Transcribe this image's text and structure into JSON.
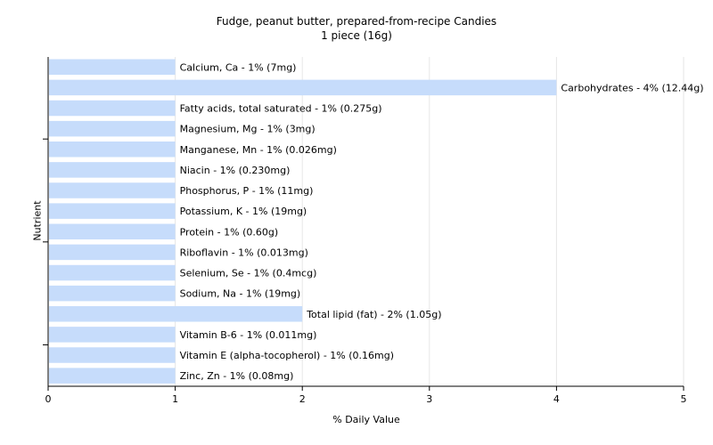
{
  "chart_data": {
    "type": "bar",
    "orientation": "horizontal",
    "title": "Fudge, peanut butter, prepared-from-recipe Candies",
    "subtitle": "1 piece (16g)",
    "xlabel": "% Daily Value",
    "ylabel": "Nutrient",
    "xlim": [
      0,
      5
    ],
    "xticks": [
      "0",
      "1",
      "2",
      "3",
      "4",
      "5"
    ],
    "grid": true,
    "categories": [
      "Calcium, Ca",
      "Carbohydrates",
      "Fatty acids, total saturated",
      "Magnesium, Mg",
      "Manganese, Mn",
      "Niacin",
      "Phosphorus, P",
      "Potassium, K",
      "Protein",
      "Riboflavin",
      "Selenium, Se",
      "Sodium, Na",
      "Total lipid (fat)",
      "Vitamin B-6",
      "Vitamin E (alpha-tocopherol)",
      "Zinc, Zn"
    ],
    "values": [
      1,
      4,
      1,
      1,
      1,
      1,
      1,
      1,
      1,
      1,
      1,
      1,
      2,
      1,
      1,
      1
    ],
    "data_labels": [
      "Calcium, Ca - 1% (7mg)",
      "Carbohydrates - 4% (12.44g)",
      "Fatty acids, total saturated - 1% (0.275g)",
      "Magnesium, Mg - 1% (3mg)",
      "Manganese, Mn - 1% (0.026mg)",
      "Niacin - 1% (0.230mg)",
      "Phosphorus, P - 1% (11mg)",
      "Potassium, K - 1% (19mg)",
      "Protein - 1% (0.60g)",
      "Riboflavin - 1% (0.013mg)",
      "Selenium, Se - 1% (0.4mcg)",
      "Sodium, Na - 1% (19mg)",
      "Total lipid (fat) - 2% (1.05g)",
      "Vitamin B-6 - 1% (0.011mg)",
      "Vitamin E (alpha-tocopherol) - 1% (0.16mg)",
      "Zinc, Zn - 1% (0.08mg)"
    ],
    "colors": {
      "bar": "#c6dcfb",
      "grid": "#e6e6e6",
      "axis": "#000000"
    }
  }
}
